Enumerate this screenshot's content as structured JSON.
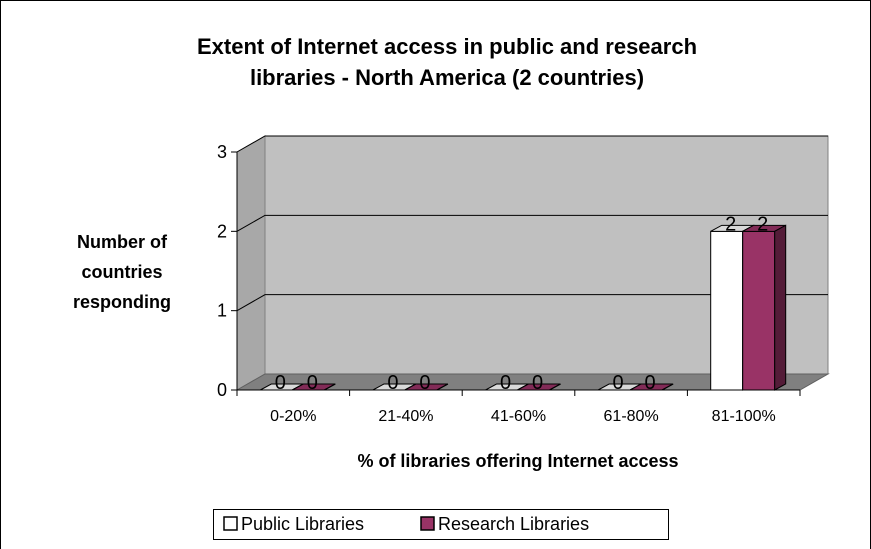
{
  "chart_data": {
    "type": "bar",
    "title": "Extent of Internet access in public and research libraries - North America (2 countries)",
    "title_lines": [
      "Extent of Internet access in public and research",
      "libraries - North America (2 countries)"
    ],
    "ylabel": "Number of countries responding",
    "ylabel_lines": [
      "Number of",
      "countries",
      "responding"
    ],
    "xlabel": "% of libraries offering Internet access",
    "categories": [
      "0-20%",
      "21-40%",
      "41-60%",
      "61-80%",
      "81-100%"
    ],
    "series": [
      {
        "name": "Public Libraries",
        "values": [
          0,
          0,
          0,
          0,
          2
        ],
        "color": "#ffffff"
      },
      {
        "name": "Research Libraries",
        "values": [
          0,
          0,
          0,
          0,
          2
        ],
        "color": "#993366"
      }
    ],
    "ylim": [
      0,
      3
    ],
    "yticks": [
      "0",
      "1",
      "2",
      "3"
    ],
    "grid": true,
    "legend_position": "bottom",
    "plot_wall_color": "#c0c0c0"
  }
}
